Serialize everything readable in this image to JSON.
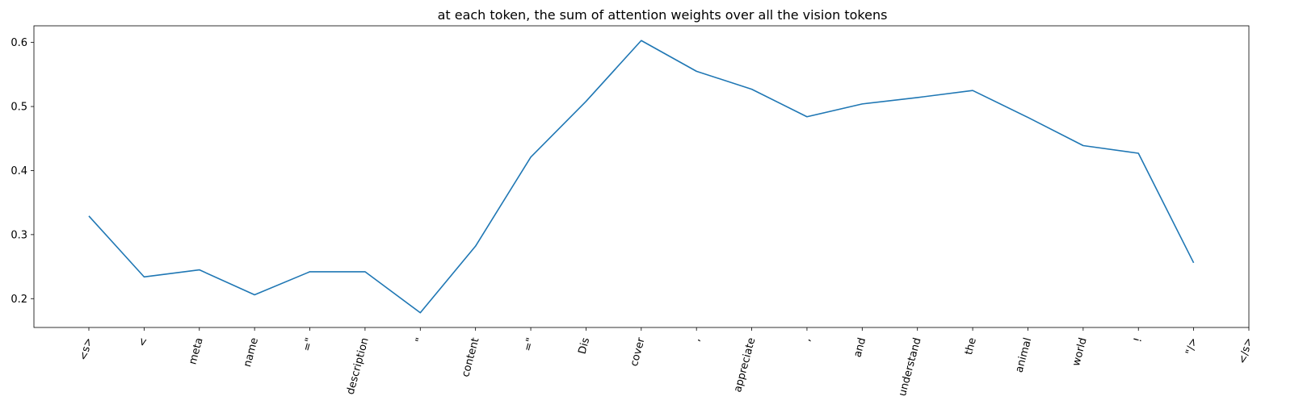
{
  "chart_data": {
    "type": "line",
    "title": "at each token, the sum of attention weights over all the vision tokens",
    "xlabel": "",
    "ylabel": "",
    "categories": [
      "<s>",
      "<",
      "meta",
      "name",
      "=\"",
      "description",
      "\"",
      "content",
      "=\"",
      "Dis",
      "cover",
      ",",
      "appreciate",
      ",",
      "and",
      "understand",
      "the",
      "animal",
      "world",
      "!",
      "\"/>",
      "</s>"
    ],
    "values": [
      0.329,
      0.234,
      0.245,
      0.206,
      0.242,
      0.242,
      0.178,
      0.282,
      0.421,
      0.508,
      0.603,
      0.555,
      0.527,
      0.484,
      0.504,
      0.514,
      0.525,
      0.483,
      0.439,
      0.427,
      0.256,
      null
    ],
    "yticks": [
      0.2,
      0.3,
      0.4,
      0.5,
      0.6
    ],
    "ytick_labels": [
      "0.2",
      "0.3",
      "0.4",
      "0.5",
      "0.6"
    ],
    "ylim": [
      0.155,
      0.626
    ],
    "line_color": "#1f77b4",
    "grid": false,
    "legend": "none"
  }
}
